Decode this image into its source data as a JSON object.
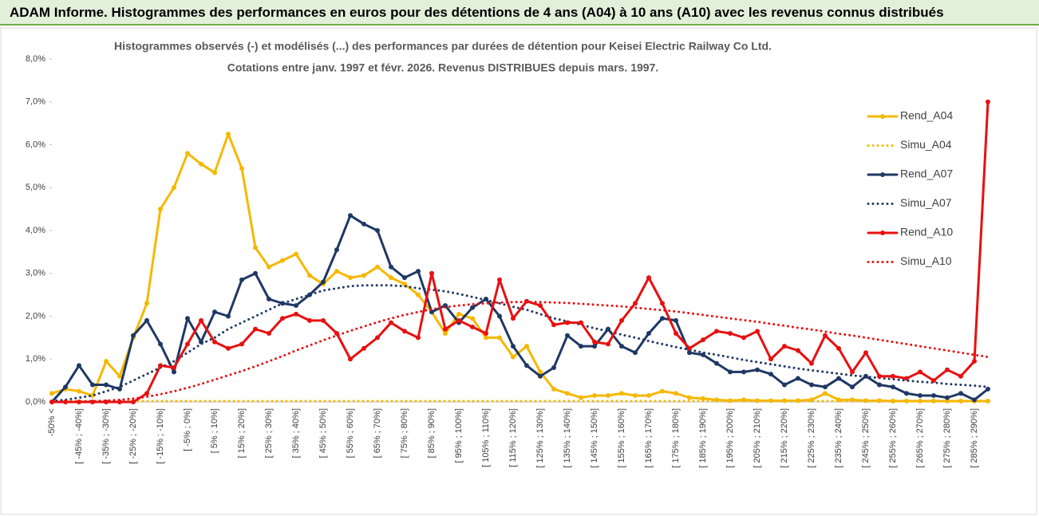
{
  "header": {
    "title": "ADAM Informe. Histogrammes des performances en euros pour des détentions de 4 ans (A04) à 10 ans (A10) avec les revenus connus distribués"
  },
  "chart_data": {
    "type": "line",
    "title": "Histogrammes observés (-)  et modélisés (...) des performances par durées de détention pour Keisei Electric Railway Co Ltd.",
    "subtitle": "Cotations entre janv. 1997 et févr. 2026. Revenus DISTRIBUES depuis mars. 1997.",
    "categories": [
      "-50% <",
      null,
      "[ -45% ; -40%]",
      null,
      "[ -35% ; -30%]",
      null,
      "[ -25% ; -20%]",
      null,
      "[ -15% ; -10%]",
      null,
      "[ -5% ; 0%]",
      null,
      "[ 5% ; 10%]",
      null,
      "[ 15% ; 20%]",
      null,
      "[ 25% ; 30%]",
      null,
      "[ 35% ; 40%]",
      null,
      "[ 45% ; 50%]",
      null,
      "[ 55% ; 60%]",
      null,
      "[ 65% ; 70%]",
      null,
      "[ 75% ; 80%]",
      null,
      "[ 85% ; 90%]",
      null,
      "[ 95% ; 100%]",
      null,
      "[ 105% ; 110%]",
      null,
      "[ 115% ; 120%]",
      null,
      "[ 125% ; 130%]",
      null,
      "[ 135% ; 140%]",
      null,
      "[ 145% ; 150%]",
      null,
      "[ 155% ; 160%]",
      null,
      "[ 165% ; 170%]",
      null,
      "[ 175% ; 180%]",
      null,
      "[ 185% ; 190%]",
      null,
      "[ 195% ; 200%]",
      null,
      "[ 205% ; 210%]",
      null,
      "[ 215% ; 220%]",
      null,
      "[ 225% ; 230%]",
      null,
      "[ 235% ; 240%]",
      null,
      "[ 245% ; 250%]",
      null,
      "[ 255% ; 260%]",
      null,
      "[ 265% ; 270%]",
      null,
      "[ 275% ; 280%]",
      null,
      "[ 285% ; 290%]",
      null
    ],
    "series": [
      {
        "name": "Rend_A04",
        "color": "#f5b800",
        "style": "solid",
        "values": [
          0.2,
          0.3,
          0.25,
          0.15,
          0.95,
          0.6,
          1.5,
          2.3,
          4.5,
          5.0,
          5.8,
          5.55,
          5.35,
          6.25,
          5.45,
          3.6,
          3.15,
          3.3,
          3.45,
          2.95,
          2.75,
          3.05,
          2.9,
          2.95,
          3.15,
          2.9,
          2.75,
          2.5,
          2.1,
          1.6,
          2.05,
          1.95,
          1.5,
          1.5,
          1.05,
          1.3,
          0.7,
          0.3,
          0.2,
          0.1,
          0.15,
          0.15,
          0.2,
          0.15,
          0.15,
          0.25,
          0.2,
          0.1,
          0.08,
          0.05,
          0.03,
          0.05,
          0.03,
          0.03,
          0.03,
          0.03,
          0.05,
          0.2,
          0.05,
          0.05,
          0.03,
          0.03,
          0.02,
          0.02,
          0.02,
          0.02,
          0.02,
          0.02,
          0.02,
          0.02
        ]
      },
      {
        "name": "Simu_A04",
        "color": "#f5b800",
        "style": "dotted",
        "values": [
          0.02,
          0.02,
          0.02,
          0.02,
          0.02,
          0.02,
          0.02,
          0.02,
          0.02,
          0.02,
          0.02,
          0.02,
          0.02,
          0.02,
          0.02,
          0.02,
          0.02,
          0.02,
          0.02,
          0.02,
          0.02,
          0.02,
          0.02,
          0.02,
          0.02,
          0.02,
          0.02,
          0.02,
          0.02,
          0.02,
          0.02,
          0.02,
          0.02,
          0.02,
          0.02,
          0.02,
          0.02,
          0.02,
          0.02,
          0.02,
          0.02,
          0.02,
          0.02,
          0.02,
          0.02,
          0.02,
          0.02,
          0.02,
          0.02,
          0.02,
          0.02,
          0.02,
          0.02,
          0.02,
          0.02,
          0.02,
          0.02,
          0.02,
          0.02,
          0.02,
          0.02,
          0.02,
          0.02,
          0.02,
          0.02,
          0.02,
          0.02,
          0.02,
          0.02,
          0.02
        ]
      },
      {
        "name": "Rend_A07",
        "color": "#1f3864",
        "style": "solid",
        "values": [
          0.0,
          0.35,
          0.85,
          0.4,
          0.4,
          0.3,
          1.55,
          1.9,
          1.35,
          0.7,
          1.95,
          1.4,
          2.1,
          2.0,
          2.85,
          3.0,
          2.4,
          2.3,
          2.25,
          2.5,
          2.8,
          3.55,
          4.35,
          4.15,
          4.0,
          3.15,
          2.9,
          3.05,
          2.1,
          2.25,
          1.85,
          2.2,
          2.4,
          2.0,
          1.3,
          0.85,
          0.6,
          0.8,
          1.55,
          1.3,
          1.3,
          1.7,
          1.3,
          1.15,
          1.6,
          1.95,
          1.9,
          1.15,
          1.1,
          0.9,
          0.7,
          0.7,
          0.75,
          0.65,
          0.4,
          0.55,
          0.4,
          0.35,
          0.55,
          0.35,
          0.6,
          0.4,
          0.35,
          0.2,
          0.15,
          0.15,
          0.1,
          0.2,
          0.05,
          0.3
        ]
      },
      {
        "name": "Simu_A07",
        "color": "#1f3864",
        "style": "dotted",
        "values": [
          0.02,
          0.05,
          0.1,
          0.15,
          0.25,
          0.35,
          0.5,
          0.65,
          0.8,
          0.95,
          1.15,
          1.35,
          1.5,
          1.7,
          1.85,
          2.0,
          2.15,
          2.3,
          2.4,
          2.5,
          2.6,
          2.65,
          2.7,
          2.72,
          2.72,
          2.72,
          2.7,
          2.65,
          2.62,
          2.58,
          2.52,
          2.45,
          2.38,
          2.3,
          2.22,
          2.15,
          2.05,
          1.95,
          1.88,
          1.8,
          1.72,
          1.65,
          1.57,
          1.5,
          1.42,
          1.35,
          1.28,
          1.22,
          1.15,
          1.1,
          1.04,
          0.98,
          0.93,
          0.88,
          0.83,
          0.78,
          0.74,
          0.7,
          0.66,
          0.62,
          0.59,
          0.56,
          0.53,
          0.5,
          0.47,
          0.45,
          0.42,
          0.4,
          0.38,
          0.35
        ]
      },
      {
        "name": "Rend_A10",
        "color": "#e81010",
        "style": "solid",
        "values": [
          0,
          0,
          0,
          0,
          0,
          0,
          0,
          0.2,
          0.85,
          0.8,
          1.35,
          1.9,
          1.4,
          1.25,
          1.35,
          1.7,
          1.6,
          1.95,
          2.05,
          1.9,
          1.9,
          1.6,
          1.0,
          1.25,
          1.5,
          1.85,
          1.65,
          1.5,
          3.0,
          1.7,
          1.9,
          1.75,
          1.6,
          2.85,
          1.95,
          2.35,
          2.25,
          1.8,
          1.85,
          1.85,
          1.4,
          1.35,
          1.9,
          2.3,
          2.9,
          2.3,
          1.6,
          1.25,
          1.45,
          1.65,
          1.6,
          1.5,
          1.65,
          1.0,
          1.3,
          1.2,
          0.9,
          1.55,
          1.25,
          0.7,
          1.15,
          0.6,
          0.6,
          0.55,
          0.7,
          0.5,
          0.75,
          0.6,
          0.95,
          7.0
        ]
      },
      {
        "name": "Simu_A10",
        "color": "#e81010",
        "style": "dotted",
        "values": [
          0.0,
          0.0,
          0.01,
          0.02,
          0.03,
          0.05,
          0.08,
          0.12,
          0.18,
          0.25,
          0.33,
          0.42,
          0.52,
          0.62,
          0.72,
          0.83,
          0.95,
          1.07,
          1.2,
          1.32,
          1.44,
          1.55,
          1.66,
          1.76,
          1.86,
          1.95,
          2.03,
          2.1,
          2.16,
          2.21,
          2.25,
          2.28,
          2.3,
          2.32,
          2.33,
          2.33,
          2.33,
          2.32,
          2.31,
          2.29,
          2.27,
          2.25,
          2.23,
          2.2,
          2.17,
          2.14,
          2.11,
          2.07,
          2.03,
          1.99,
          1.95,
          1.91,
          1.87,
          1.82,
          1.78,
          1.73,
          1.69,
          1.64,
          1.59,
          1.55,
          1.5,
          1.45,
          1.4,
          1.35,
          1.3,
          1.25,
          1.2,
          1.15,
          1.1,
          1.05
        ]
      }
    ],
    "ylim": [
      0,
      8
    ],
    "yticks": [
      {
        "value": 0,
        "label": "0,0%"
      },
      {
        "value": 1,
        "label": "1,0%"
      },
      {
        "value": 2,
        "label": "2,0%"
      },
      {
        "value": 3,
        "label": "3,0%"
      },
      {
        "value": 4,
        "label": "4,0%"
      },
      {
        "value": 5,
        "label": "5,0%"
      },
      {
        "value": 6,
        "label": "6,0%"
      },
      {
        "value": 7,
        "label": "7,0%"
      },
      {
        "value": 8,
        "label": "8,0%"
      }
    ],
    "grid": false,
    "legend": "right"
  }
}
